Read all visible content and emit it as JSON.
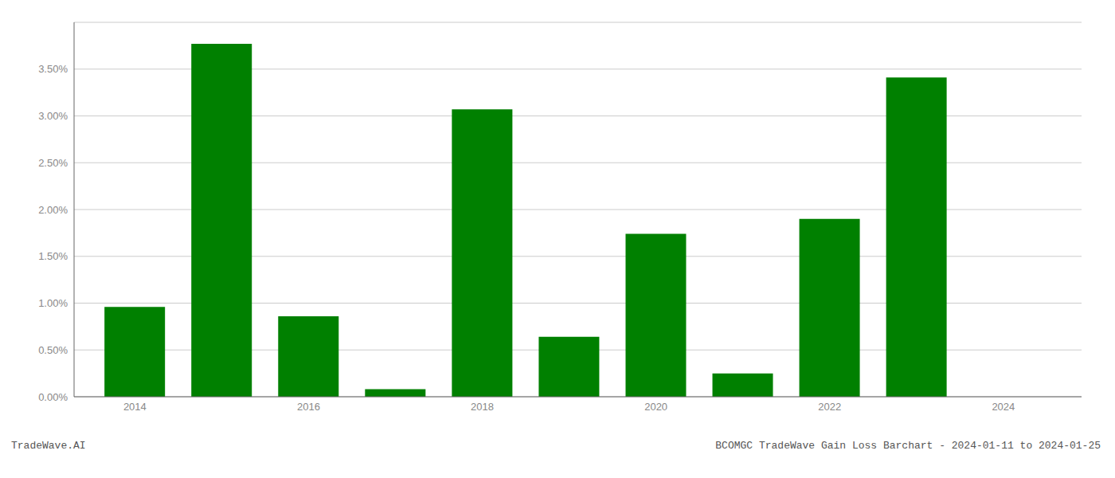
{
  "chart_data": {
    "type": "bar",
    "x": [
      2014,
      2015,
      2016,
      2017,
      2018,
      2019,
      2020,
      2021,
      2022,
      2023,
      2024
    ],
    "values": [
      0.0096,
      0.0377,
      0.0086,
      0.0008,
      0.0307,
      0.0064,
      0.0174,
      0.0025,
      0.019,
      0.0341,
      0.0
    ],
    "color": "#008000",
    "xlim": [
      2013.3,
      2024.9
    ],
    "xticks": [
      2014,
      2016,
      2018,
      2020,
      2022,
      2024
    ],
    "ylim": [
      0.0,
      0.04
    ],
    "yticks": [
      {
        "value": 0.0,
        "label": "0.00%"
      },
      {
        "value": 0.005,
        "label": "0.50%"
      },
      {
        "value": 0.01,
        "label": "1.00%"
      },
      {
        "value": 0.015,
        "label": "1.50%"
      },
      {
        "value": 0.02,
        "label": "2.00%"
      },
      {
        "value": 0.025,
        "label": "2.50%"
      },
      {
        "value": 0.03,
        "label": "3.00%"
      },
      {
        "value": 0.035,
        "label": "3.50%"
      }
    ],
    "grid": true,
    "annotations": [
      "TradeWave.AI",
      "BCOMGC TradeWave Gain Loss Barchart - 2024-01-11 to 2024-01-25"
    ]
  }
}
